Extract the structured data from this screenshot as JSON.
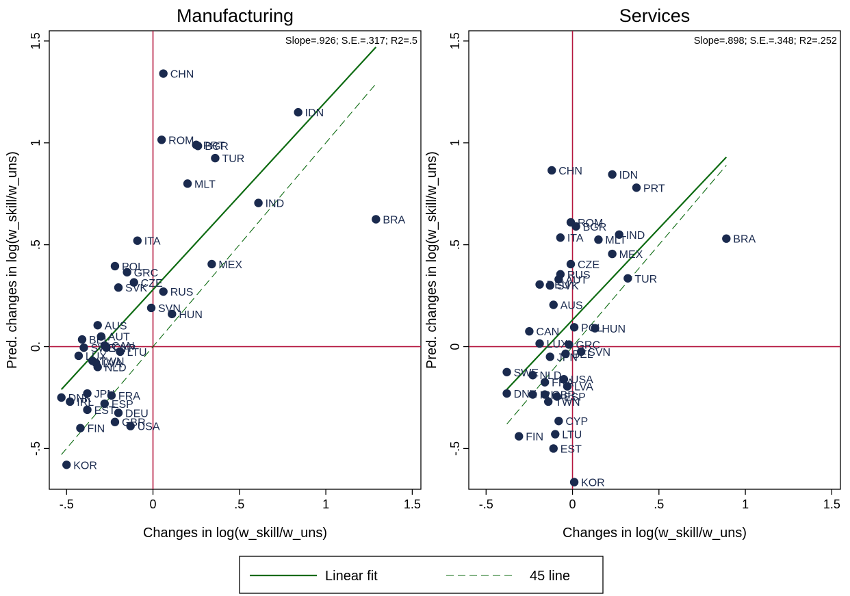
{
  "chart_data": [
    {
      "type": "scatter",
      "title": "Manufacturing",
      "xlabel": "Changes in log(w_skill/w_uns)",
      "ylabel": "Pred. changes in log(w_skill/w_uns)",
      "xlim": [
        -0.6,
        1.55
      ],
      "ylim": [
        -0.7,
        1.55
      ],
      "xticks": [
        -0.5,
        0,
        0.5,
        1,
        1.5
      ],
      "xtick_labels": [
        "-.5",
        "0",
        ".5",
        "1",
        "1.5"
      ],
      "yticks": [
        -0.5,
        0,
        0.5,
        1,
        1.5
      ],
      "ytick_labels": [
        "-.5",
        "0.",
        ".5",
        "1",
        "1.5"
      ],
      "grid": false,
      "stat_note": "Slope=.926; S.E.=.317; R2=.5",
      "linear_fit": {
        "x": [
          -0.53,
          1.29
        ],
        "y": [
          -0.21,
          1.47
        ]
      },
      "line_45": {
        "x": [
          -0.53,
          1.29
        ],
        "y": [
          -0.53,
          1.29
        ]
      },
      "points": [
        {
          "label": "CHN",
          "x": 0.06,
          "y": 1.34
        },
        {
          "label": "IDN",
          "x": 0.84,
          "y": 1.15
        },
        {
          "label": "ROM",
          "x": 0.05,
          "y": 1.015
        },
        {
          "label": "PRT",
          "x": 0.25,
          "y": 0.99
        },
        {
          "label": "BGR",
          "x": 0.26,
          "y": 0.985
        },
        {
          "label": "TUR",
          "x": 0.36,
          "y": 0.925
        },
        {
          "label": "MLT",
          "x": 0.2,
          "y": 0.8
        },
        {
          "label": "IND",
          "x": 0.61,
          "y": 0.705
        },
        {
          "label": "BRA",
          "x": 1.29,
          "y": 0.625
        },
        {
          "label": "ITA",
          "x": -0.09,
          "y": 0.52
        },
        {
          "label": "MEX",
          "x": 0.34,
          "y": 0.405
        },
        {
          "label": "POL",
          "x": -0.22,
          "y": 0.395
        },
        {
          "label": "GRC",
          "x": -0.15,
          "y": 0.365
        },
        {
          "label": "CZE",
          "x": -0.11,
          "y": 0.315
        },
        {
          "label": "SVK",
          "x": -0.2,
          "y": 0.29
        },
        {
          "label": "RUS",
          "x": 0.06,
          "y": 0.27
        },
        {
          "label": "SVN",
          "x": -0.01,
          "y": 0.19
        },
        {
          "label": "HUN",
          "x": 0.11,
          "y": 0.16
        },
        {
          "label": "AUS",
          "x": -0.32,
          "y": 0.105
        },
        {
          "label": "AUT",
          "x": -0.3,
          "y": 0.05
        },
        {
          "label": "BEL",
          "x": -0.41,
          "y": 0.035
        },
        {
          "label": "CAN",
          "x": -0.28,
          "y": 0.005
        },
        {
          "label": "SWE",
          "x": -0.4,
          "y": -0.005
        },
        {
          "label": "CYP",
          "x": -0.27,
          "y": -0.005
        },
        {
          "label": "LTU",
          "x": -0.19,
          "y": -0.025
        },
        {
          "label": "LUX",
          "x": -0.43,
          "y": -0.045
        },
        {
          "label": "TWN",
          "x": -0.35,
          "y": -0.07
        },
        {
          "label": "LVA",
          "x": -0.33,
          "y": -0.08
        },
        {
          "label": "NLD",
          "x": -0.32,
          "y": -0.1
        },
        {
          "label": "JPN",
          "x": -0.38,
          "y": -0.23
        },
        {
          "label": "FRA",
          "x": -0.24,
          "y": -0.24
        },
        {
          "label": "DNK",
          "x": -0.53,
          "y": -0.25
        },
        {
          "label": "IRL",
          "x": -0.48,
          "y": -0.27
        },
        {
          "label": "ESP",
          "x": -0.28,
          "y": -0.28
        },
        {
          "label": "EST",
          "x": -0.38,
          "y": -0.31
        },
        {
          "label": "DEU",
          "x": -0.2,
          "y": -0.325
        },
        {
          "label": "GBR",
          "x": -0.22,
          "y": -0.37
        },
        {
          "label": "USA",
          "x": -0.13,
          "y": -0.39
        },
        {
          "label": "FIN",
          "x": -0.42,
          "y": -0.4
        },
        {
          "label": "KOR",
          "x": -0.5,
          "y": -0.58
        }
      ]
    },
    {
      "type": "scatter",
      "title": "Services",
      "xlabel": "Changes in log(w_skill/w_uns)",
      "ylabel": "Pred. changes in log(w_skill/w_uns)",
      "xlim": [
        -0.6,
        1.55
      ],
      "ylim": [
        -0.7,
        1.55
      ],
      "xticks": [
        -0.5,
        0,
        0.5,
        1,
        1.5
      ],
      "xtick_labels": [
        "-.5",
        "0",
        ".5",
        "1",
        "1.5"
      ],
      "yticks": [
        -0.5,
        0,
        0.5,
        1,
        1.5
      ],
      "ytick_labels": [
        "-.5",
        "0",
        ".5",
        "1",
        "1.5"
      ],
      "grid": false,
      "stat_note": "Slope=.898; S.E.=.348; R2=.252",
      "linear_fit": {
        "x": [
          -0.38,
          0.89
        ],
        "y": [
          -0.21,
          0.93
        ]
      },
      "line_45": {
        "x": [
          -0.38,
          0.89
        ],
        "y": [
          -0.38,
          0.89
        ]
      },
      "points": [
        {
          "label": "CHN",
          "x": -0.12,
          "y": 0.865
        },
        {
          "label": "IDN",
          "x": 0.23,
          "y": 0.845
        },
        {
          "label": "PRT",
          "x": 0.37,
          "y": 0.78
        },
        {
          "label": "ROM",
          "x": -0.01,
          "y": 0.61
        },
        {
          "label": "BGR",
          "x": 0.02,
          "y": 0.59
        },
        {
          "label": "IND",
          "x": 0.27,
          "y": 0.55
        },
        {
          "label": "ITA",
          "x": -0.07,
          "y": 0.535
        },
        {
          "label": "MLT",
          "x": 0.15,
          "y": 0.525
        },
        {
          "label": "BRA",
          "x": 0.89,
          "y": 0.53
        },
        {
          "label": "MEX",
          "x": 0.23,
          "y": 0.455
        },
        {
          "label": "CZE",
          "x": -0.01,
          "y": 0.405
        },
        {
          "label": "RUS",
          "x": -0.07,
          "y": 0.355
        },
        {
          "label": "AUT",
          "x": -0.08,
          "y": 0.33
        },
        {
          "label": "TUR",
          "x": 0.32,
          "y": 0.335
        },
        {
          "label": "DEU",
          "x": -0.19,
          "y": 0.305
        },
        {
          "label": "SVK",
          "x": -0.13,
          "y": 0.3
        },
        {
          "label": "AUS",
          "x": -0.11,
          "y": 0.205
        },
        {
          "label": "POL",
          "x": 0.01,
          "y": 0.095
        },
        {
          "label": "HUN",
          "x": 0.13,
          "y": 0.09
        },
        {
          "label": "CAN",
          "x": -0.25,
          "y": 0.075
        },
        {
          "label": "LUX",
          "x": -0.19,
          "y": 0.015
        },
        {
          "label": "GRC",
          "x": -0.02,
          "y": 0.01
        },
        {
          "label": "SVN",
          "x": 0.05,
          "y": -0.025
        },
        {
          "label": "BEL",
          "x": -0.04,
          "y": -0.035
        },
        {
          "label": "JPN",
          "x": -0.13,
          "y": -0.05
        },
        {
          "label": "SWE",
          "x": -0.38,
          "y": -0.125
        },
        {
          "label": "NLD",
          "x": -0.23,
          "y": -0.14
        },
        {
          "label": "USA",
          "x": -0.05,
          "y": -0.16
        },
        {
          "label": "FRA",
          "x": -0.16,
          "y": -0.175
        },
        {
          "label": "LVA",
          "x": -0.03,
          "y": -0.195
        },
        {
          "label": "DNK",
          "x": -0.38,
          "y": -0.23
        },
        {
          "label": "IRL",
          "x": -0.23,
          "y": -0.235
        },
        {
          "label": "GBR",
          "x": -0.16,
          "y": -0.235
        },
        {
          "label": "ESP",
          "x": -0.09,
          "y": -0.245
        },
        {
          "label": "TWN",
          "x": -0.14,
          "y": -0.27
        },
        {
          "label": "CYP",
          "x": -0.08,
          "y": -0.365
        },
        {
          "label": "LTU",
          "x": -0.1,
          "y": -0.43
        },
        {
          "label": "FIN",
          "x": -0.31,
          "y": -0.44
        },
        {
          "label": "EST",
          "x": -0.11,
          "y": -0.5
        },
        {
          "label": "KOR",
          "x": 0.01,
          "y": -0.665
        }
      ]
    }
  ],
  "legend": {
    "position": "bottom",
    "items": [
      {
        "label": "Linear fit",
        "style": "solid"
      },
      {
        "label": "45 line",
        "style": "dashed"
      }
    ]
  },
  "colors": {
    "marker": "#1a2a4e",
    "fit_line": "#0e6b12",
    "ref_lines": "#b5173f",
    "text": "#1a2a4e",
    "axis": "#000000"
  }
}
